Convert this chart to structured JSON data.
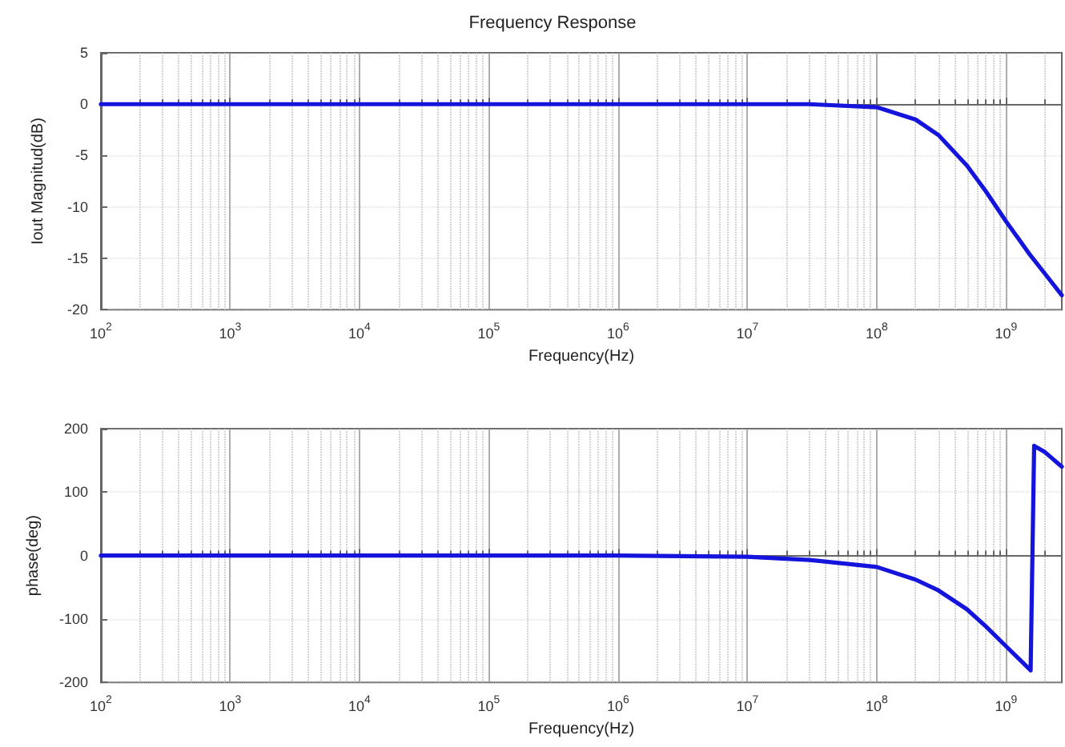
{
  "chart_data": [
    {
      "type": "line",
      "title": "Frequency Response",
      "xlabel": "Frequency(Hz)",
      "ylabel": "Iout Magnitud(dB)",
      "log": "x",
      "grid": true,
      "marker": "none",
      "line_style": "solid",
      "xlim": [
        100,
        2700000000
      ],
      "xticks": [
        {
          "value": 100,
          "label": "10$^{2}$"
        },
        {
          "value": 1000,
          "label": "10$^{3}$"
        },
        {
          "value": 10000,
          "label": "10$^{4}$"
        },
        {
          "value": 100000,
          "label": "10$^{5}$"
        },
        {
          "value": 1000000,
          "label": "10$^{6}$"
        },
        {
          "value": 10000000,
          "label": "10$^{7}$"
        },
        {
          "value": 100000000,
          "label": "10$^{8}$"
        },
        {
          "value": 1000000000,
          "label": "10$^{9}$"
        }
      ],
      "ylim": [
        -20,
        5
      ],
      "yticks": [
        -20,
        -15,
        -10,
        -5,
        0,
        5
      ],
      "x": [
        100,
        1000,
        10000,
        100000,
        1000000,
        10000000,
        30000000,
        100000000,
        200000000,
        300000000,
        500000000,
        700000000,
        1000000000,
        1500000000,
        2000000000,
        2700000000
      ],
      "series": [
        {
          "color": "#1414dc",
          "values": [
            0,
            0,
            0,
            0,
            0,
            0,
            0,
            -0.3,
            -1.5,
            -3,
            -6,
            -8.5,
            -11.4,
            -14.5,
            -16.5,
            -18.6
          ]
        }
      ]
    },
    {
      "type": "line",
      "xlabel": "Frequency(Hz)",
      "ylabel": "phase(deg)",
      "log": "x",
      "grid": true,
      "marker": "none",
      "line_style": "solid",
      "xlim": [
        100,
        2700000000
      ],
      "xticks": [
        {
          "value": 100,
          "label": "10$^{2}$"
        },
        {
          "value": 1000,
          "label": "10$^{3}$"
        },
        {
          "value": 10000,
          "label": "10$^{4}$"
        },
        {
          "value": 100000,
          "label": "10$^{5}$"
        },
        {
          "value": 1000000,
          "label": "10$^{6}$"
        },
        {
          "value": 10000000,
          "label": "10$^{7}$"
        },
        {
          "value": 100000000,
          "label": "10$^{8}$"
        },
        {
          "value": 1000000000,
          "label": "10$^{9}$"
        }
      ],
      "ylim": [
        -200,
        200
      ],
      "yticks": [
        -200,
        -100,
        0,
        100,
        200
      ],
      "x": [
        100,
        1000,
        10000,
        100000,
        1000000,
        10000000,
        30000000,
        100000000,
        200000000,
        300000000,
        500000000,
        700000000,
        1000000000,
        1550000000,
        1650000000,
        2000000000,
        2700000000
      ],
      "series": [
        {
          "color": "#1414dc",
          "values": [
            0,
            0,
            0,
            0,
            0,
            -2,
            -7,
            -18,
            -38,
            -55,
            -85,
            -112,
            -143,
            -181,
            173,
            163,
            140
          ]
        }
      ]
    }
  ]
}
